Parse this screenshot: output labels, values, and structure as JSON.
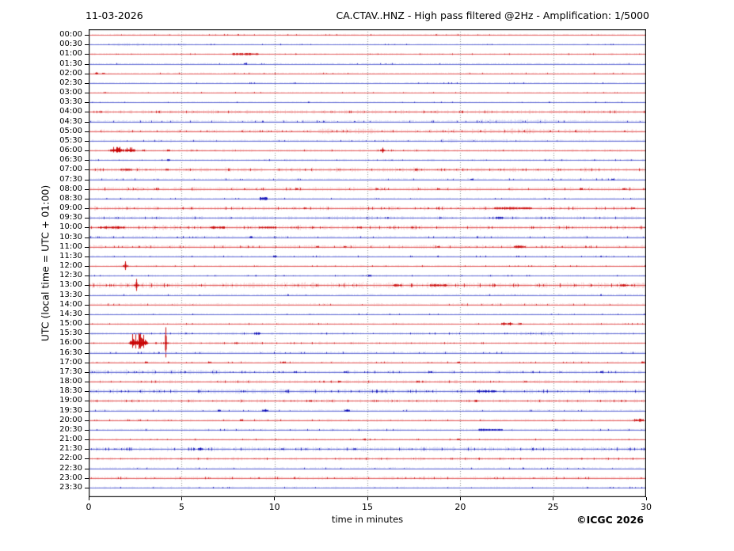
{
  "header": {
    "date": "11-03-2026",
    "station_title": "CA.CTAV..HNZ - High pass filtered @2Hz - Amplification: 1/5000"
  },
  "axes": {
    "y_label": "UTC (local time = UTC + 01:00)",
    "x_label": "time in minutes",
    "x_ticks": [
      0,
      5,
      10,
      15,
      20,
      25,
      30
    ],
    "x_range": [
      0,
      30
    ],
    "grid": "vertical dotted every 5 minutes"
  },
  "footer": {
    "credit": "©ICGC 2026"
  },
  "colors": {
    "background": "#ffffff",
    "frame": "#000000",
    "grid": "#8a8a8a",
    "red_main": "#e05252",
    "red_light": "#f6b8b8",
    "red_dark": "#c80000",
    "blue_main": "#5a64d2",
    "blue_light": "#b6bcee",
    "blue_dark": "#0000b4"
  },
  "chart_data": {
    "type": "line",
    "subtype": "helicorder-seismogram",
    "title": "CA.CTAV..HNZ - High pass filtered @2Hz - Amplification: 1/5000",
    "date": "11-03-2026",
    "xlabel": "time in minutes",
    "ylabel": "UTC (local time = UTC + 01:00)",
    "x_range": [
      0,
      30
    ],
    "minutes_per_row": 30,
    "row_interval": "00:30",
    "legend": "none",
    "amplitude_units": "relative_px",
    "traces": [
      {
        "t": "00:00",
        "c": "r",
        "n": 0.7,
        "ev": []
      },
      {
        "t": "00:30",
        "c": "b",
        "n": 0.6,
        "seg": [
          [
            1.3,
            5.4,
            1
          ]
        ],
        "ev": []
      },
      {
        "t": "01:00",
        "c": "r",
        "n": 0.7,
        "ev": [
          {
            "k": "blob",
            "m": 8.4,
            "w": 1.4,
            "a": 1.2
          }
        ]
      },
      {
        "t": "01:30",
        "c": "b",
        "n": 0.5,
        "ev": [
          {
            "k": "speck",
            "m": 8.4
          }
        ]
      },
      {
        "t": "02:00",
        "c": "r",
        "n": 0.6,
        "ev": [
          {
            "k": "speck",
            "m": 0.4
          },
          {
            "k": "speck",
            "m": 0.8
          }
        ]
      },
      {
        "t": "02:30",
        "c": "b",
        "n": 0.5,
        "ev": []
      },
      {
        "t": "03:00",
        "c": "r",
        "n": 0.6,
        "ev": []
      },
      {
        "t": "03:30",
        "c": "b",
        "n": 0.5,
        "ev": []
      },
      {
        "t": "04:00",
        "c": "r",
        "n": 1.4,
        "ev": [
          {
            "k": "speck",
            "m": 0.6
          }
        ]
      },
      {
        "t": "04:30",
        "c": "b",
        "n": 1.0,
        "seg": [
          [
            20.9,
            25.2,
            1
          ]
        ],
        "ev": []
      },
      {
        "t": "05:00",
        "c": "r",
        "n": 1.2,
        "seg": [
          [
            12.4,
            15.4,
            1
          ],
          [
            19,
            27,
            1
          ]
        ],
        "ev": []
      },
      {
        "t": "05:30",
        "c": "b",
        "n": 0.9,
        "seg": [
          [
            19,
            22.5,
            1
          ]
        ],
        "ev": []
      },
      {
        "t": "06:00",
        "c": "r",
        "n": 1.0,
        "ev": [
          {
            "k": "burst",
            "m": 1.5,
            "w": 0.55,
            "a": 5
          },
          {
            "k": "burst",
            "m": 2.2,
            "w": 0.35,
            "a": 4
          },
          {
            "k": "speck",
            "m": 2.9
          },
          {
            "k": "speck",
            "m": 4.3
          },
          {
            "k": "spike",
            "m": 15.8,
            "a": 3.5,
            "d": 3
          }
        ]
      },
      {
        "t": "06:30",
        "c": "b",
        "n": 0.8,
        "ev": [
          {
            "k": "speck",
            "m": 4.3
          }
        ]
      },
      {
        "t": "07:00",
        "c": "r",
        "n": 1.6,
        "ev": [
          {
            "k": "blob",
            "m": 2.0,
            "w": 0.5,
            "a": 1.3
          },
          {
            "k": "speck",
            "m": 4.2
          },
          {
            "k": "speck",
            "m": 17.6
          }
        ]
      },
      {
        "t": "07:30",
        "c": "b",
        "n": 0.8,
        "ev": [
          {
            "k": "speck",
            "m": 20.6
          },
          {
            "k": "speck",
            "m": 28.2
          }
        ]
      },
      {
        "t": "08:00",
        "c": "r",
        "n": 1.5,
        "ev": [
          {
            "k": "speck",
            "m": 3.7
          },
          {
            "k": "speck",
            "m": 11.2
          },
          {
            "k": "speck",
            "m": 15.5
          },
          {
            "k": "speck",
            "m": 18.8
          },
          {
            "k": "speck",
            "m": 26.5
          },
          {
            "k": "speck",
            "m": 28.8
          }
        ]
      },
      {
        "t": "08:30",
        "c": "b",
        "n": 0.7,
        "ev": [
          {
            "k": "blob",
            "m": 9.4,
            "w": 0.35,
            "a": 1.8
          }
        ]
      },
      {
        "t": "09:00",
        "c": "r",
        "n": 1.5,
        "ev": [
          {
            "k": "speck",
            "m": 11.6
          },
          {
            "k": "blob",
            "m": 22.8,
            "w": 2.0,
            "a": 1.2
          },
          {
            "k": "speck",
            "m": 29.3
          }
        ]
      },
      {
        "t": "09:30",
        "c": "b",
        "n": 1.3,
        "ev": [
          {
            "k": "blob",
            "m": 22.1,
            "w": 0.4,
            "a": 1.5
          }
        ]
      },
      {
        "t": "10:00",
        "c": "r",
        "n": 1.7,
        "ev": [
          {
            "k": "blob",
            "m": 1.2,
            "w": 1.4,
            "a": 1.4
          },
          {
            "k": "speck",
            "m": 3.6
          },
          {
            "k": "blob",
            "m": 6.9,
            "w": 0.8,
            "a": 1.4
          },
          {
            "k": "blob",
            "m": 9.6,
            "w": 0.9,
            "a": 1.2
          },
          {
            "k": "speck",
            "m": 14.5
          },
          {
            "k": "speck",
            "m": 17.4
          }
        ]
      },
      {
        "t": "10:30",
        "c": "b",
        "n": 1.0,
        "ev": [
          {
            "k": "speck",
            "m": 8.7
          }
        ]
      },
      {
        "t": "11:00",
        "c": "r",
        "n": 1.4,
        "ev": [
          {
            "k": "speck",
            "m": 12.3
          },
          {
            "k": "speck",
            "m": 13.8
          },
          {
            "k": "speck",
            "m": 18.8
          },
          {
            "k": "blob",
            "m": 23.2,
            "w": 0.6,
            "a": 1.2
          }
        ]
      },
      {
        "t": "11:30",
        "c": "b",
        "n": 0.8,
        "ev": [
          {
            "k": "speck",
            "m": 10.0
          }
        ]
      },
      {
        "t": "12:00",
        "c": "r",
        "n": 0.8,
        "ev": [
          {
            "k": "spike",
            "m": 1.95,
            "a": 6,
            "d": 5
          }
        ]
      },
      {
        "t": "12:30",
        "c": "b",
        "n": 0.7,
        "ev": [
          {
            "k": "speck",
            "m": 15.1
          }
        ]
      },
      {
        "t": "13:00",
        "c": "r",
        "n": 2.2,
        "ev": [
          {
            "k": "spike",
            "m": 2.55,
            "a": 8,
            "d": 7
          },
          {
            "k": "blob",
            "m": 16.6,
            "w": 0.5,
            "a": 1.5
          },
          {
            "k": "blob",
            "m": 18.8,
            "w": 0.9,
            "a": 1.5
          },
          {
            "k": "blob",
            "m": 28.8,
            "w": 0.4,
            "a": 1.5
          }
        ]
      },
      {
        "t": "13:30",
        "c": "b",
        "n": 0.7,
        "ev": []
      },
      {
        "t": "14:00",
        "c": "r",
        "n": 1.0,
        "ev": []
      },
      {
        "t": "14:30",
        "c": "b",
        "n": 0.6,
        "ev": []
      },
      {
        "t": "15:00",
        "c": "r",
        "n": 0.8,
        "ev": [
          {
            "k": "spike",
            "m": 22.35,
            "a": 2,
            "d": 2
          },
          {
            "k": "spike",
            "m": 22.65,
            "a": 2,
            "d": 2
          },
          {
            "k": "speck",
            "m": 23.2
          }
        ]
      },
      {
        "t": "15:30",
        "c": "b",
        "n": 1.0,
        "seg": [
          [
            23,
            25.5,
            1
          ]
        ],
        "ev": [
          {
            "k": "blob",
            "m": 9.05,
            "w": 0.3,
            "a": 1.5
          }
        ]
      },
      {
        "t": "16:00",
        "c": "r",
        "n": 1.0,
        "ev": [
          {
            "k": "burst",
            "m": 2.65,
            "w": 0.9,
            "a": 12
          },
          {
            "k": "spike",
            "m": 4.15,
            "a": 20,
            "d": 18
          },
          {
            "k": "speck",
            "m": 7.9
          }
        ]
      },
      {
        "t": "16:30",
        "c": "b",
        "n": 0.9,
        "ev": []
      },
      {
        "t": "17:00",
        "c": "r",
        "n": 0.8,
        "ev": [
          {
            "k": "speck",
            "m": 3.1
          },
          {
            "k": "speck",
            "m": 6.5
          },
          {
            "k": "speck",
            "m": 10.5
          },
          {
            "k": "speck",
            "m": 19.9
          },
          {
            "k": "speck",
            "m": 29.8
          }
        ]
      },
      {
        "t": "17:30",
        "c": "b",
        "n": 1.2,
        "seg": [
          [
            0,
            7,
            1
          ]
        ],
        "ev": [
          {
            "k": "speck",
            "m": 11.1
          },
          {
            "k": "speck",
            "m": 13.8
          },
          {
            "k": "speck",
            "m": 18.4
          },
          {
            "k": "speck",
            "m": 27.6
          }
        ]
      },
      {
        "t": "18:00",
        "c": "r",
        "n": 1.2,
        "ev": [
          {
            "k": "speck",
            "m": 13.5
          },
          {
            "k": "speck",
            "m": 17.7
          },
          {
            "k": "speck",
            "m": 23.5
          }
        ]
      },
      {
        "t": "18:30",
        "c": "b",
        "n": 1.8,
        "ev": [
          {
            "k": "blob",
            "m": 21.4,
            "w": 1.0,
            "a": 1.0
          }
        ]
      },
      {
        "t": "19:00",
        "c": "r",
        "n": 1.3,
        "ev": [
          {
            "k": "speck",
            "m": 11.9
          },
          {
            "k": "speck",
            "m": 20.8
          }
        ]
      },
      {
        "t": "19:30",
        "c": "b",
        "n": 0.8,
        "ev": [
          {
            "k": "speck",
            "m": 7.0
          },
          {
            "k": "spike",
            "m": 9.5,
            "a": 1.8,
            "d": 1.5
          },
          {
            "k": "spike",
            "m": 13.9,
            "a": 1.6,
            "d": 1.4
          }
        ]
      },
      {
        "t": "20:00",
        "c": "r",
        "n": 0.9,
        "ev": [
          {
            "k": "speck",
            "m": 8.2
          },
          {
            "k": "blob",
            "m": 29.6,
            "w": 0.5,
            "a": 1.8
          }
        ]
      },
      {
        "t": "20:30",
        "c": "b",
        "n": 0.9,
        "ev": [
          {
            "k": "blob",
            "m": 21.6,
            "w": 1.3,
            "a": 1.1
          }
        ]
      },
      {
        "t": "21:00",
        "c": "r",
        "n": 0.8,
        "ev": [
          {
            "k": "speck",
            "m": 14.8
          },
          {
            "k": "speck",
            "m": 19.9
          }
        ]
      },
      {
        "t": "21:30",
        "c": "b",
        "n": 1.7,
        "ev": [
          {
            "k": "spike",
            "m": 6.0,
            "a": 2,
            "d": 1.6
          },
          {
            "k": "speck",
            "m": 10.4
          },
          {
            "k": "speck",
            "m": 14.3
          }
        ]
      },
      {
        "t": "22:00",
        "c": "r",
        "n": 1.1,
        "ev": []
      },
      {
        "t": "22:30",
        "c": "b",
        "n": 0.8,
        "ev": []
      },
      {
        "t": "23:00",
        "c": "r",
        "n": 1.2,
        "ev": []
      },
      {
        "t": "23:30",
        "c": "b",
        "n": 0.8,
        "ev": []
      }
    ]
  }
}
